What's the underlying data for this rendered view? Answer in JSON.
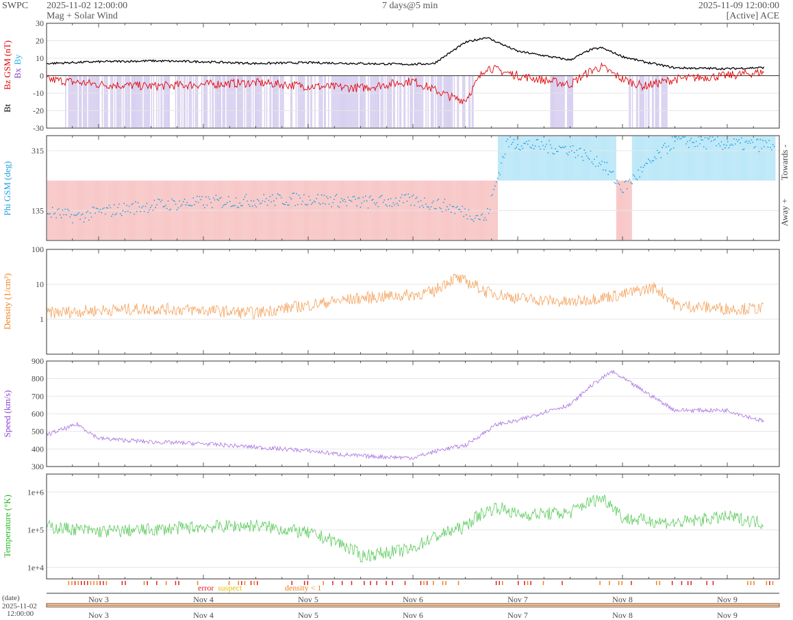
{
  "header": {
    "source": "SWPC",
    "start_time": "2025-11-02 12:00:00",
    "subtitle": "Mag + Solar Wind",
    "span": "7 days@5 min",
    "end_time": "2025-11-09 12:00:00",
    "satellite": "[Active] ACE"
  },
  "footer": {
    "date_label": "(date)",
    "date_start": "2025-11-02",
    "time_start": "12:00:00",
    "legend_error": "error",
    "legend_suspect": "suspect",
    "legend_density": "density < 1"
  },
  "colors": {
    "bt": "#000000",
    "bz": "#e00000",
    "bx": "#8040c0",
    "by": "#20b0e0",
    "bz_fill": "#d8d0f0",
    "phi": "#1ea0e0",
    "towards_fill": "#bde8f8",
    "away_fill": "#f8c8c8",
    "density": "#f08020",
    "speed": "#8a40d8",
    "temperature": "#22b822",
    "error": "#e02020",
    "suspect": "#e8c000",
    "density_flag": "#f08020",
    "frame": "#333333",
    "grid": "#e6e6e6"
  },
  "chart_data": [
    {
      "type": "line",
      "panel": "magnetic_field",
      "ylabel": [
        "Bt",
        "Bz GSM (nT)",
        "Bx",
        "By"
      ],
      "ylim": [
        -30,
        30
      ],
      "yticks": [
        "30",
        "20",
        "10",
        "0",
        "-10",
        "-20",
        "-30"
      ],
      "x_unit": "days since 2025-11-02 12:00",
      "series": [
        {
          "name": "Bt",
          "x": [
            0,
            0.5,
            1,
            1.5,
            2,
            2.5,
            3,
            3.5,
            3.7,
            3.9,
            4,
            4.2,
            4.5,
            5,
            5.2,
            5.3,
            5.5,
            5.7,
            6,
            6.5,
            7
          ],
          "values": [
            7,
            8,
            8.5,
            8,
            7,
            7.5,
            7,
            6.5,
            7,
            15,
            19,
            22,
            14,
            9,
            15,
            16,
            11,
            8,
            4.5,
            4,
            5
          ]
        },
        {
          "name": "Bz",
          "x": [
            0,
            0.5,
            1,
            1.5,
            2,
            2.5,
            3,
            3.5,
            3.7,
            3.9,
            4,
            4.2,
            4.5,
            5,
            5.2,
            5.3,
            5.5,
            5.7,
            6,
            6.5,
            7
          ],
          "values": [
            -2,
            -5,
            -6,
            -5,
            -4,
            -6,
            -7,
            -3,
            -8,
            -13,
            -14,
            5,
            0,
            -5,
            3,
            5,
            -2,
            -6,
            -2,
            0,
            3
          ]
        }
      ]
    },
    {
      "type": "scatter",
      "panel": "phi",
      "ylabel": "Phi GSM (deg)",
      "right_labels": [
        "Towards -",
        "Away +"
      ],
      "ylim": [
        45,
        360
      ],
      "yticks": [
        "315",
        "135"
      ],
      "x_unit": "days since 2025-11-02 12:00",
      "series": [
        {
          "name": "Phi",
          "x": [
            0,
            0.3,
            0.5,
            1,
            1.5,
            2,
            2.5,
            3,
            3.5,
            3.8,
            4.2,
            4.4,
            4.8,
            5.0,
            5.3,
            5.5,
            6,
            6.5,
            7
          ],
          "values": [
            130,
            115,
            130,
            150,
            160,
            165,
            170,
            160,
            165,
            150,
            110,
            340,
            325,
            320,
            280,
            200,
            345,
            335,
            330
          ]
        }
      ]
    },
    {
      "type": "line",
      "panel": "density",
      "ylabel": "Density (1/cm³)",
      "yscale": "log",
      "ylim": [
        0.1,
        100
      ],
      "yticks": [
        "100",
        "10",
        "1"
      ],
      "x_unit": "days since 2025-11-02 12:00",
      "series": [
        {
          "name": "Density",
          "x": [
            0,
            0.5,
            1,
            1.5,
            2,
            2.5,
            3,
            3.5,
            3.7,
            3.9,
            4,
            4.2,
            4.5,
            5,
            5.5,
            5.8,
            6,
            6.5,
            7
          ],
          "values": [
            1.5,
            1.8,
            2,
            1.8,
            1.5,
            2.5,
            4,
            5,
            6,
            15,
            12,
            6,
            4,
            3,
            5,
            8,
            2.5,
            2,
            2
          ]
        }
      ]
    },
    {
      "type": "line",
      "panel": "speed",
      "ylabel": "Speed (km/s)",
      "ylim": [
        300,
        900
      ],
      "yticks": [
        "900",
        "800",
        "700",
        "600",
        "500",
        "400",
        "300"
      ],
      "x_unit": "days since 2025-11-02 12:00",
      "series": [
        {
          "name": "Speed",
          "x": [
            0,
            0.3,
            0.5,
            1,
            1.5,
            2,
            2.5,
            2.8,
            3,
            3.5,
            3.8,
            4,
            4.3,
            4.5,
            4.8,
            5,
            5.2,
            5.4,
            6,
            6.5,
            7
          ],
          "values": [
            480,
            540,
            460,
            440,
            430,
            410,
            390,
            370,
            360,
            350,
            400,
            420,
            540,
            560,
            620,
            650,
            760,
            840,
            620,
            620,
            530
          ]
        }
      ]
    },
    {
      "type": "line",
      "panel": "temperature",
      "ylabel": "Temperature (°K)",
      "yscale": "log",
      "ylim": [
        5000,
        3000000
      ],
      "yticks": [
        "1e+6",
        "1e+5",
        "1e+4"
      ],
      "x_unit": "days since 2025-11-02 12:00",
      "series": [
        {
          "name": "Temperature",
          "x": [
            0,
            0.5,
            1,
            1.5,
            2,
            2.5,
            3,
            3.5,
            3.8,
            4,
            4.3,
            4.5,
            5,
            5.3,
            5.5,
            6,
            6.5,
            7
          ],
          "values": [
            120000,
            90000,
            100000,
            120000,
            130000,
            80000,
            20000,
            30000,
            80000,
            120000,
            400000,
            250000,
            280000,
            700000,
            200000,
            150000,
            220000,
            120000
          ]
        }
      ]
    }
  ],
  "x_axis": {
    "labels": [
      "Nov 3",
      "Nov 4",
      "Nov 5",
      "Nov 6",
      "Nov 7",
      "Nov 8",
      "Nov 9"
    ]
  }
}
